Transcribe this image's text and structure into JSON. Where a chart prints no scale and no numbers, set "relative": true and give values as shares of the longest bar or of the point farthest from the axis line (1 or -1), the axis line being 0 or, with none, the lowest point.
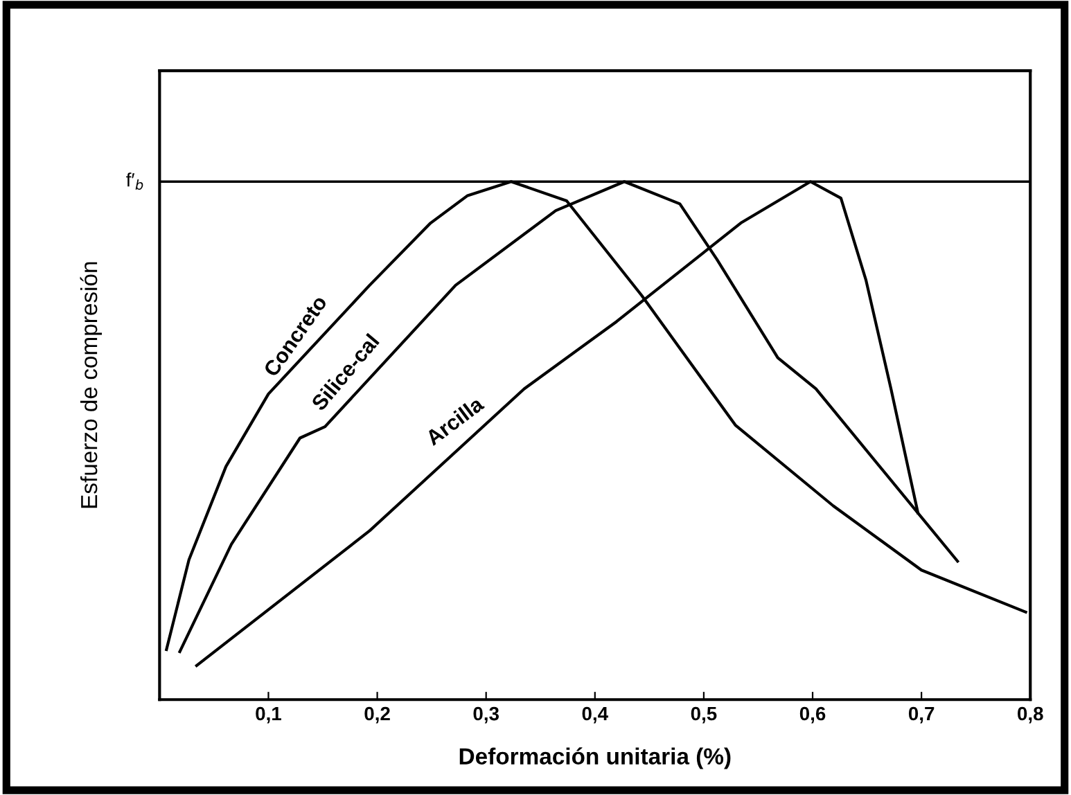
{
  "chart_data": {
    "type": "line",
    "relative": true,
    "xlabel": "Deformación unitaria (%)",
    "ylabel": "Esfuerzo de compresión",
    "xlim": [
      0,
      0.8
    ],
    "xticks": [
      {
        "value": 0.1,
        "label": "0,1"
      },
      {
        "value": 0.2,
        "label": "0,2"
      },
      {
        "value": 0.3,
        "label": "0,3"
      },
      {
        "value": 0.4,
        "label": "0,4"
      },
      {
        "value": 0.5,
        "label": "0,5"
      },
      {
        "value": 0.6,
        "label": "0,6"
      },
      {
        "value": 0.7,
        "label": "0,7"
      },
      {
        "value": 0.8,
        "label": "0,8"
      }
    ],
    "grid": false,
    "legend": false,
    "marker": "none",
    "line_style": "solid",
    "ref_lines": [
      {
        "axis": "y",
        "value": 1,
        "label": "f′$_{b}$",
        "color": "#000000",
        "line_style": "solid"
      }
    ],
    "series": [
      {
        "name": "Concreto",
        "color": "#000000",
        "x": [
          0.006,
          0.027,
          0.061,
          0.1,
          0.193,
          0.249,
          0.283,
          0.323,
          0.374,
          0.443,
          0.529,
          0.619,
          0.7,
          0.797
        ],
        "values": [
          0.094,
          0.27,
          0.45,
          0.59,
          0.8,
          0.92,
          0.973,
          1,
          0.963,
          0.78,
          0.53,
          0.374,
          0.25,
          0.168
        ]
      },
      {
        "name": "Silice-cal",
        "color": "#000000",
        "x": [
          0.018,
          0.066,
          0.129,
          0.152,
          0.272,
          0.364,
          0.427,
          0.478,
          0.512,
          0.568,
          0.603,
          0.734
        ],
        "values": [
          0.09,
          0.3,
          0.505,
          0.527,
          0.8,
          0.944,
          1,
          0.957,
          0.85,
          0.66,
          0.6,
          0.265
        ]
      },
      {
        "name": "Arcilla",
        "color": "#000000",
        "x": [
          0.033,
          0.193,
          0.335,
          0.42,
          0.534,
          0.598,
          0.626,
          0.649,
          0.672,
          0.697
        ],
        "values": [
          0.064,
          0.326,
          0.6,
          0.73,
          0.92,
          1,
          0.968,
          0.81,
          0.6,
          0.358
        ]
      }
    ]
  }
}
